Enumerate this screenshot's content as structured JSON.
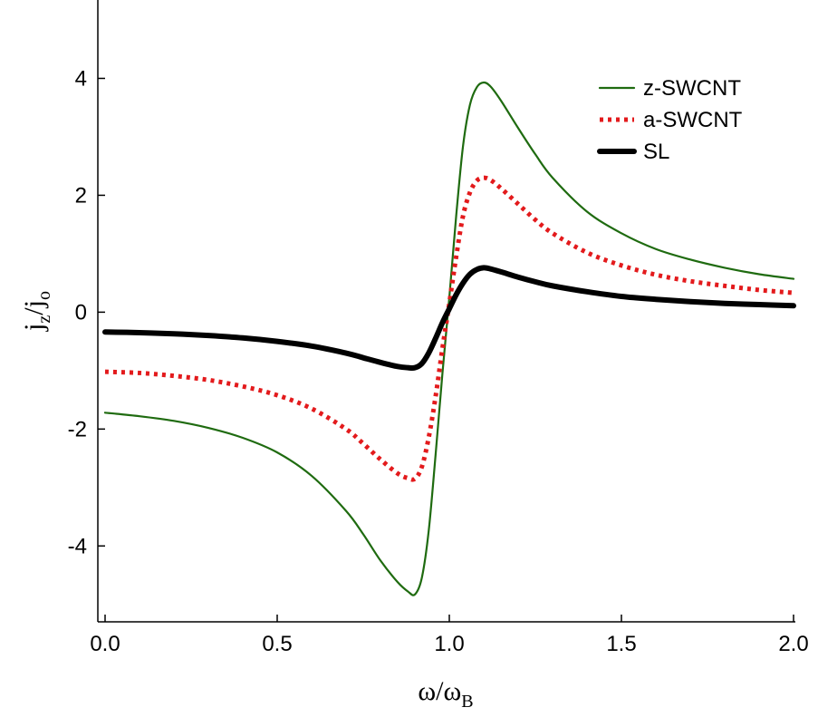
{
  "chart_data": {
    "type": "line",
    "title": "",
    "xlabel": {
      "main": "ω/ω",
      "sub": "B"
    },
    "ylabel": {
      "j": "j",
      "z": "z",
      "slash": "/j",
      "o": "o"
    },
    "xlim": [
      0.0,
      2.0
    ],
    "ylim": [
      -5.05,
      5.0
    ],
    "xticks": [
      {
        "value": 0.0,
        "label": "0.0"
      },
      {
        "value": 0.5,
        "label": "0.5"
      },
      {
        "value": 1.0,
        "label": "1.0"
      },
      {
        "value": 1.5,
        "label": "1.5"
      },
      {
        "value": 2.0,
        "label": "2.0"
      }
    ],
    "yticks": [
      {
        "value": -4,
        "label": "-4"
      },
      {
        "value": -2,
        "label": "-2"
      },
      {
        "value": 0,
        "label": "0"
      },
      {
        "value": 2,
        "label": "2"
      },
      {
        "value": 4,
        "label": "4"
      }
    ],
    "grid": false,
    "legend_position": "top-right",
    "series": [
      {
        "name": "z-SWCNT",
        "color": "#1f6b10",
        "style": "solid",
        "x": [
          0.0,
          0.1,
          0.2,
          0.3,
          0.4,
          0.5,
          0.6,
          0.7,
          0.75,
          0.8,
          0.85,
          0.88,
          0.9,
          0.92,
          0.94,
          0.96,
          0.98,
          1.0,
          1.02,
          1.04,
          1.06,
          1.08,
          1.1,
          1.12,
          1.15,
          1.2,
          1.25,
          1.3,
          1.4,
          1.5,
          1.6,
          1.7,
          1.8,
          1.9,
          2.0
        ],
        "y": [
          -1.72,
          -1.78,
          -1.86,
          -1.98,
          -2.15,
          -2.4,
          -2.8,
          -3.4,
          -3.8,
          -4.25,
          -4.62,
          -4.78,
          -4.83,
          -4.55,
          -3.75,
          -2.45,
          -1.05,
          0.25,
          1.65,
          2.85,
          3.55,
          3.85,
          3.93,
          3.86,
          3.62,
          3.15,
          2.7,
          2.3,
          1.72,
          1.35,
          1.08,
          0.9,
          0.76,
          0.65,
          0.57
        ]
      },
      {
        "name": "a-SWCNT",
        "color": "#e31a1c",
        "style": "dotted",
        "x": [
          0.0,
          0.1,
          0.2,
          0.3,
          0.4,
          0.5,
          0.6,
          0.7,
          0.75,
          0.8,
          0.85,
          0.88,
          0.9,
          0.92,
          0.94,
          0.96,
          0.98,
          1.0,
          1.02,
          1.04,
          1.06,
          1.08,
          1.1,
          1.12,
          1.15,
          1.2,
          1.25,
          1.3,
          1.4,
          1.5,
          1.6,
          1.7,
          1.8,
          1.9,
          2.0
        ],
        "y": [
          -1.02,
          -1.04,
          -1.09,
          -1.16,
          -1.27,
          -1.42,
          -1.65,
          -2.0,
          -2.25,
          -2.52,
          -2.76,
          -2.84,
          -2.85,
          -2.65,
          -2.15,
          -1.45,
          -0.62,
          0.15,
          0.95,
          1.65,
          2.05,
          2.25,
          2.3,
          2.26,
          2.12,
          1.85,
          1.58,
          1.35,
          1.02,
          0.8,
          0.64,
          0.53,
          0.45,
          0.38,
          0.33
        ]
      },
      {
        "name": "SL",
        "color": "#000000",
        "style": "solid-thick",
        "x": [
          0.0,
          0.1,
          0.2,
          0.3,
          0.4,
          0.5,
          0.6,
          0.7,
          0.75,
          0.8,
          0.85,
          0.88,
          0.9,
          0.92,
          0.94,
          0.96,
          0.98,
          1.0,
          1.02,
          1.04,
          1.06,
          1.08,
          1.1,
          1.12,
          1.15,
          1.2,
          1.25,
          1.3,
          1.4,
          1.5,
          1.6,
          1.7,
          1.8,
          1.9,
          2.0
        ],
        "y": [
          -0.34,
          -0.35,
          -0.37,
          -0.4,
          -0.44,
          -0.5,
          -0.58,
          -0.7,
          -0.78,
          -0.86,
          -0.93,
          -0.95,
          -0.95,
          -0.88,
          -0.7,
          -0.45,
          -0.18,
          0.06,
          0.3,
          0.5,
          0.65,
          0.73,
          0.76,
          0.74,
          0.69,
          0.6,
          0.52,
          0.45,
          0.35,
          0.27,
          0.22,
          0.18,
          0.15,
          0.13,
          0.11
        ]
      }
    ]
  }
}
